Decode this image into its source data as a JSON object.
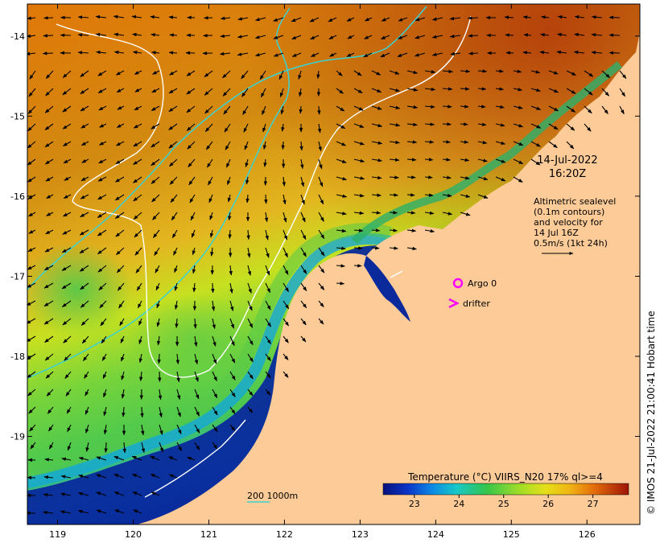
{
  "timestamp": {
    "date": "14-Jul-2022",
    "time": "16:20Z"
  },
  "info_lines": [
    "Altimetric sealevel",
    "(0.1m contours)",
    "and velocity for",
    "14 Jul 16Z",
    "0.5m/s (1kt 24h)"
  ],
  "legend": {
    "argo_label": "Argo 0",
    "drifter_label": "drifter",
    "argo_color": "#ff00ff",
    "drifter_color": "#ff00ff"
  },
  "colorbar": {
    "title": "Temperature (°C) VIIRS_N20 17% ql>=4",
    "ticks": [
      "23",
      "24",
      "25",
      "26",
      "27"
    ],
    "range": [
      22.3,
      27.8
    ]
  },
  "isobath_legend": {
    "text": "200  1000m",
    "color": "#3cd2d2"
  },
  "credit": "© IMOS 21-Jul-2022 21:00:41 Hobart time",
  "axes": {
    "lon_ticks": [
      "119",
      "120",
      "121",
      "122",
      "123",
      "124",
      "125",
      "126"
    ],
    "lat_ticks": [
      "-14",
      "-15",
      "-16",
      "-17",
      "-18",
      "-19"
    ],
    "lon_range": [
      118.6,
      126.7
    ],
    "lat_range": [
      -13.6,
      -20.1
    ]
  },
  "colors": {
    "land": "#fdcb97",
    "sealevel_contour": "#ffffff",
    "isobath": "#3cd2d2",
    "arrows": "#000000"
  }
}
